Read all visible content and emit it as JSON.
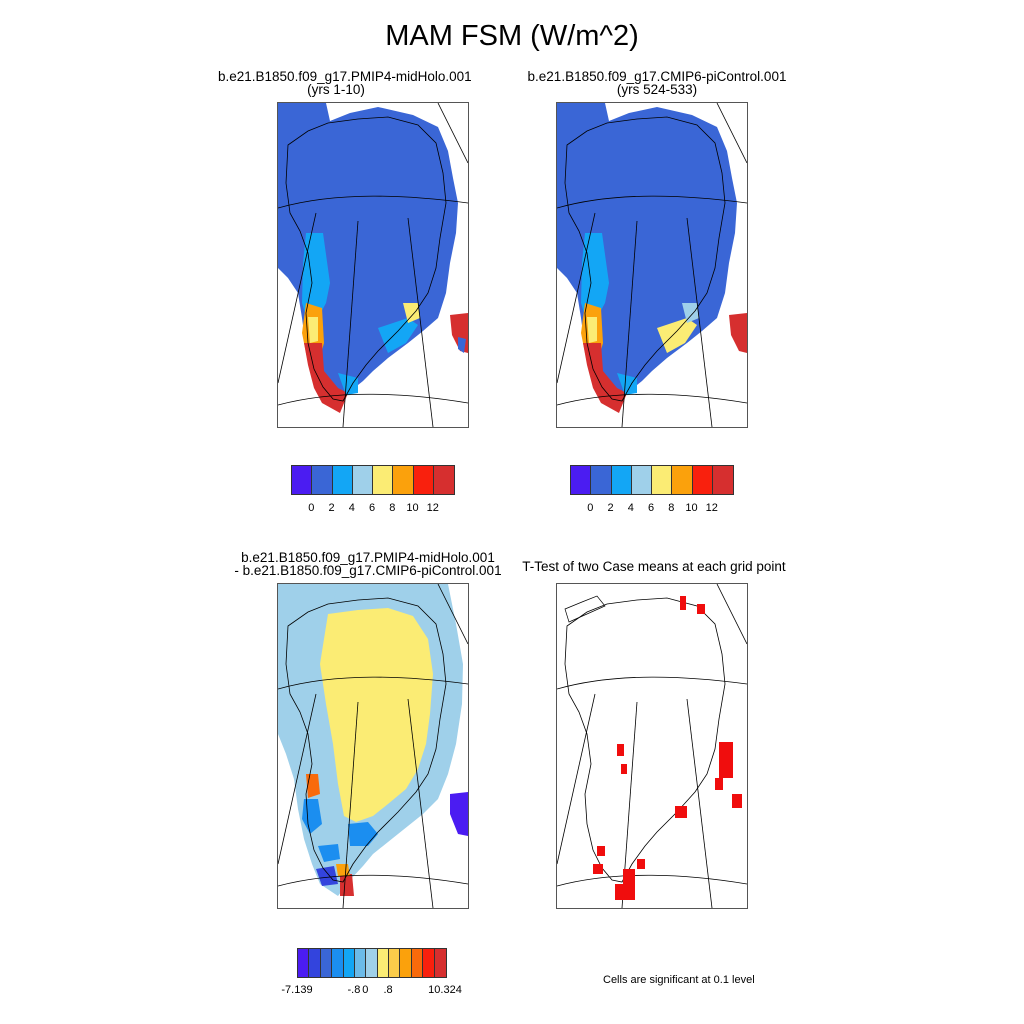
{
  "title": "MAM FSM (W/m^2)",
  "panels": {
    "p1": {
      "title_line1": "b.e21.B1850.f09_g17.PMIP4-midHolo.001",
      "title_line2": "(yrs 1-10)"
    },
    "p2": {
      "title_line1": "b.e21.B1850.f09_g17.CMIP6-piControl.001",
      "title_line2": "(yrs 524-533)"
    },
    "p3": {
      "title_line1": "b.e21.B1850.f09_g17.PMIP4-midHolo.001",
      "title_line2": "- b.e21.B1850.f09_g17.CMIP6-piControl.001"
    },
    "p4": {
      "title_line1": "T-Test of two Case means at each grid point"
    }
  },
  "colorbar_top": {
    "colors": [
      "#4b1cf2",
      "#3a66d6",
      "#13a6f5",
      "#9fd0ea",
      "#fbec74",
      "#fba10c",
      "#f9200d",
      "#d62f2f"
    ],
    "tick_labels": [
      "0",
      "2",
      "4",
      "6",
      "8",
      "10",
      "12"
    ]
  },
  "colorbar_diff": {
    "colors": [
      "#4b1cf2",
      "#3344dd",
      "#3a66d6",
      "#1b8ef0",
      "#13a6f5",
      "#6cbbe9",
      "#9fd0ea",
      "#fbec74",
      "#fbcc4a",
      "#fba10c",
      "#f96a0b",
      "#f9200d",
      "#d62f2f"
    ],
    "tick_labels": [
      "-7.139",
      "-.8",
      "0",
      ".8",
      "10.324"
    ]
  },
  "note": "Cells are significant at 0.1 level",
  "colors": {
    "ice": "#3a66d6",
    "diff_land": "#9fd0ea",
    "diff_core": "#fbec74",
    "significant": "#f00d0d"
  }
}
